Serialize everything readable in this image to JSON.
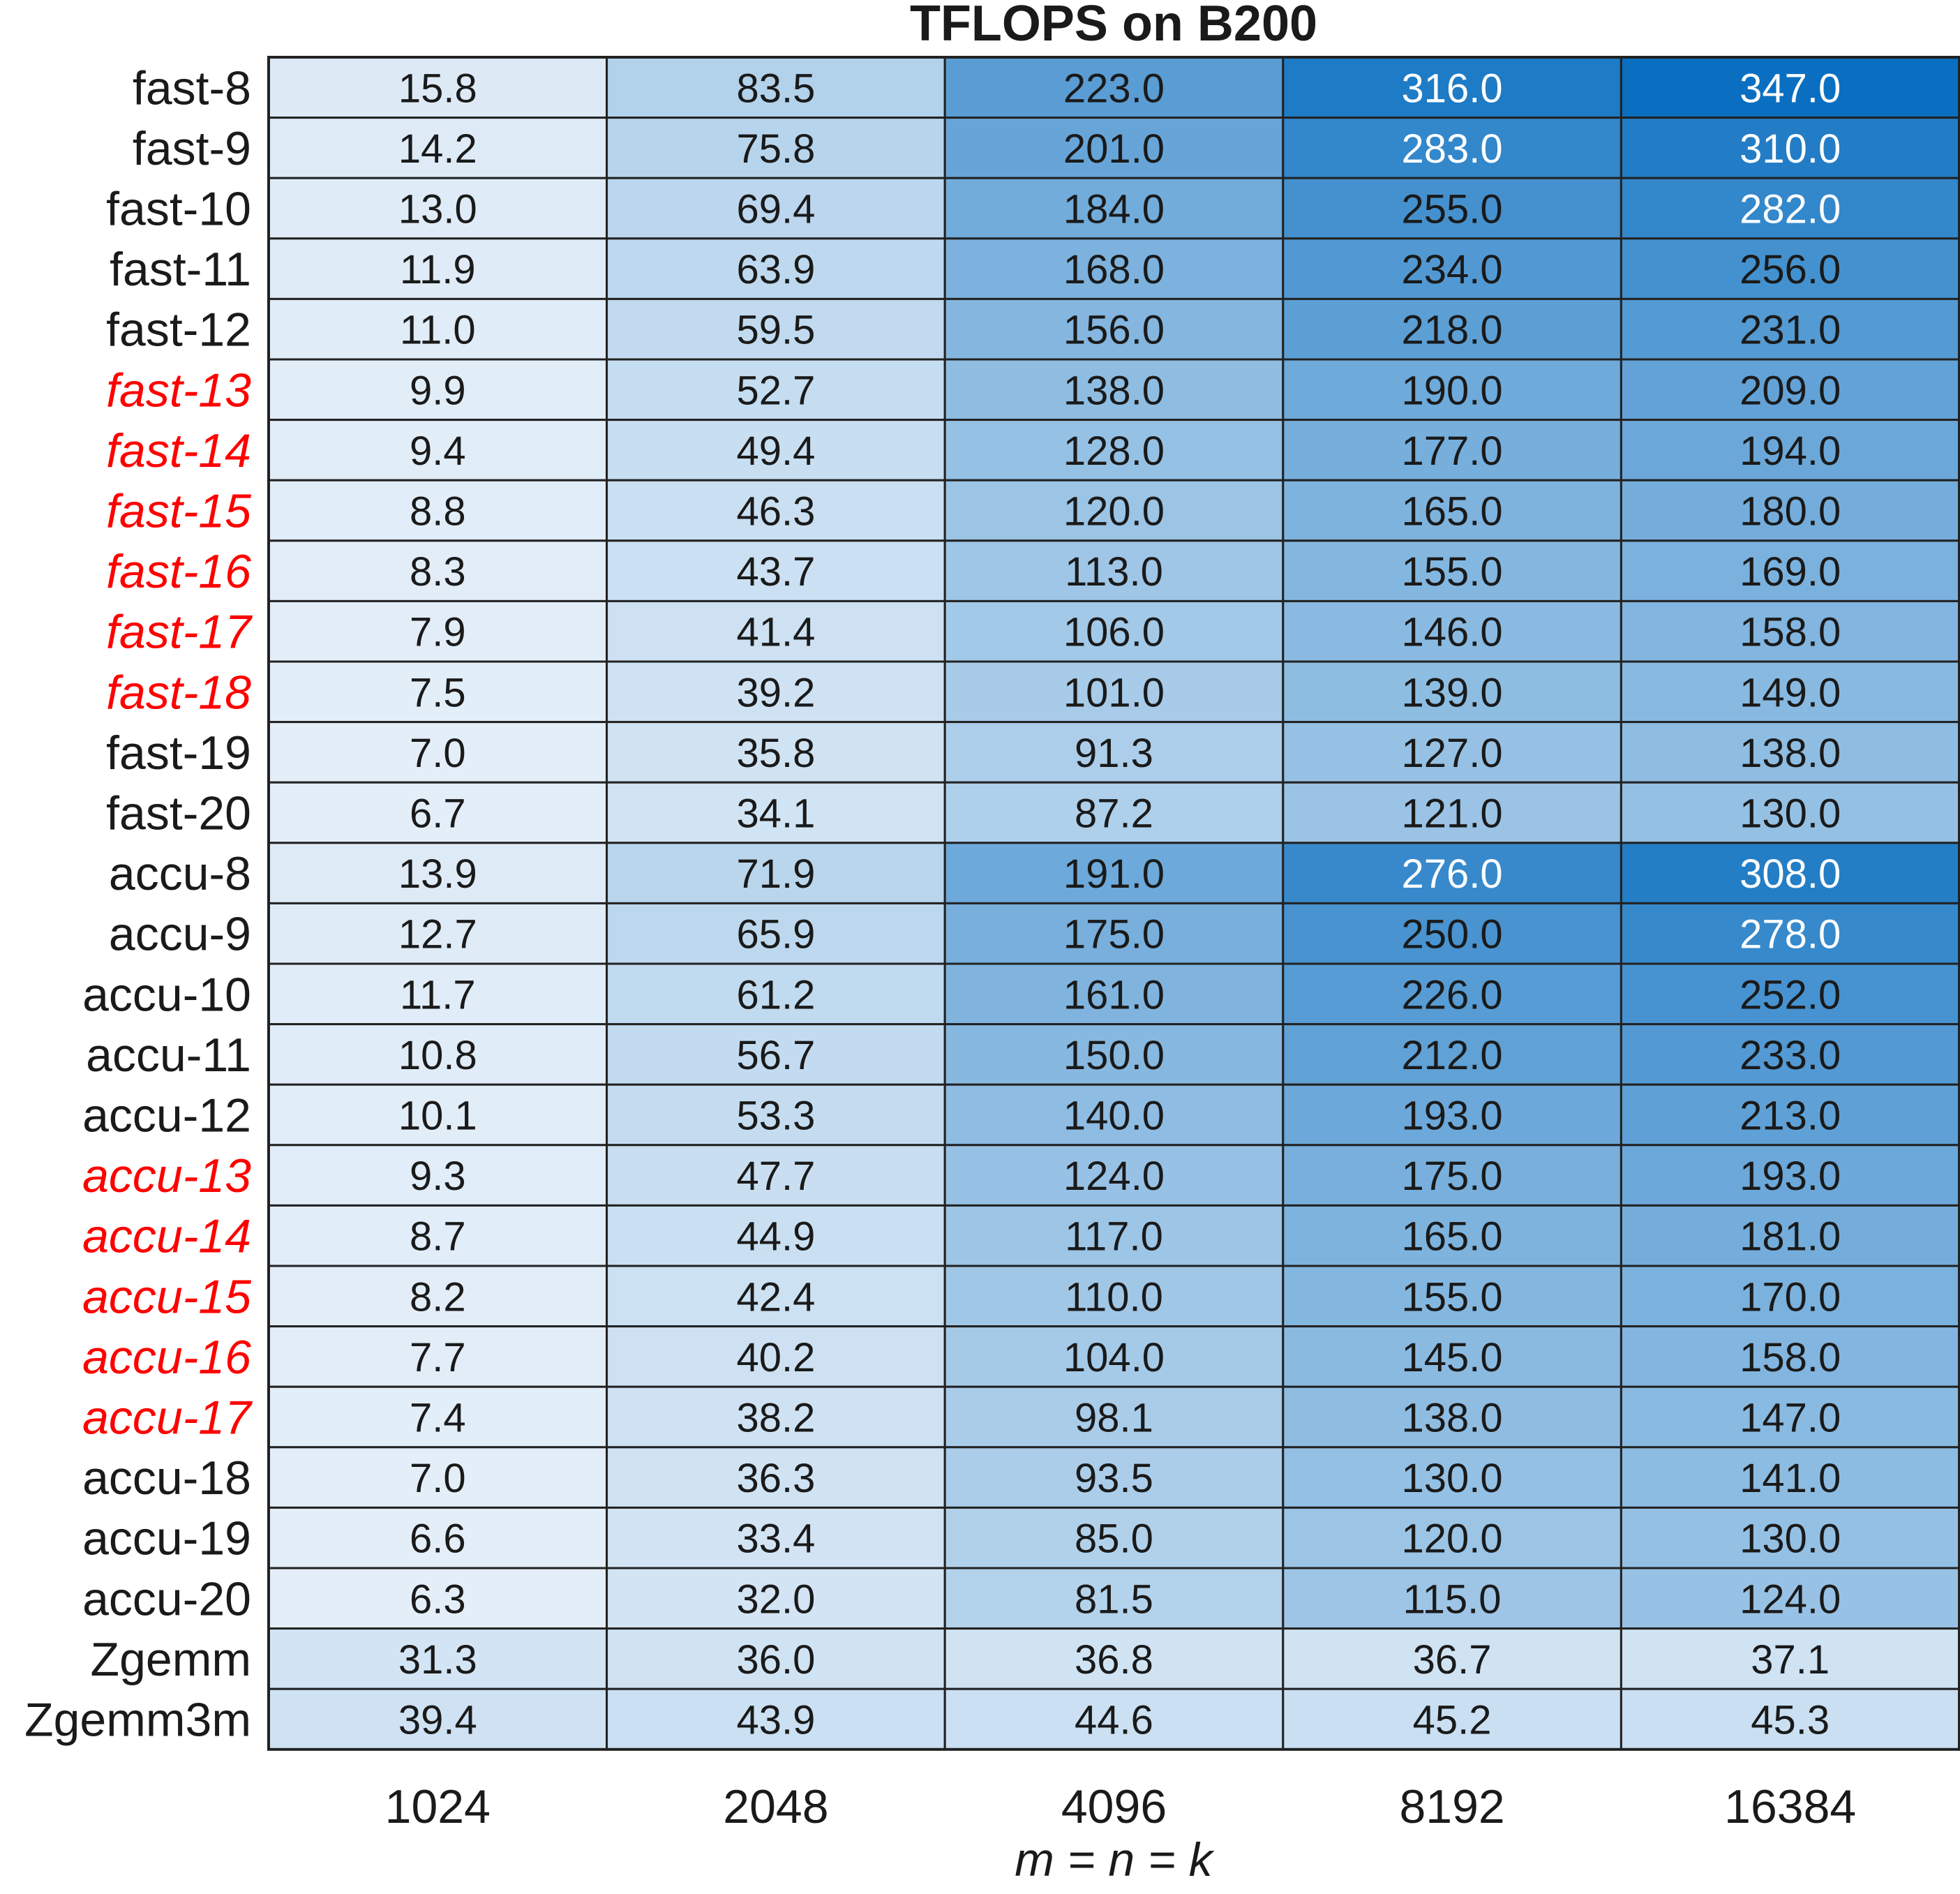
{
  "chart_data": {
    "type": "heatmap",
    "title": "TFLOPS on B200",
    "xlabel": "m = n = k",
    "ylabel": "",
    "colormap": "blues",
    "colors": {
      "low": "#e3eef8",
      "high": "#0a6fc0",
      "grid": "#222222",
      "highlight_label": "#ff0000",
      "label": "#1a1a1a",
      "value_dark": "#1a1a1a",
      "value_light": "#ffffff"
    },
    "x": [
      "1024",
      "2048",
      "4096",
      "8192",
      "16384"
    ],
    "y": [
      "fast-8",
      "fast-9",
      "fast-10",
      "fast-11",
      "fast-12",
      "fast-13",
      "fast-14",
      "fast-15",
      "fast-16",
      "fast-17",
      "fast-18",
      "fast-19",
      "fast-20",
      "accu-8",
      "accu-9",
      "accu-10",
      "accu-11",
      "accu-12",
      "accu-13",
      "accu-14",
      "accu-15",
      "accu-16",
      "accu-17",
      "accu-18",
      "accu-19",
      "accu-20",
      "Zgemm",
      "Zgemm3m"
    ],
    "highlighted_rows": [
      "fast-13",
      "fast-14",
      "fast-15",
      "fast-16",
      "fast-17",
      "fast-18",
      "accu-13",
      "accu-14",
      "accu-15",
      "accu-16",
      "accu-17"
    ],
    "values": [
      [
        15.8,
        83.5,
        223.0,
        316.0,
        347.0
      ],
      [
        14.2,
        75.8,
        201.0,
        283.0,
        310.0
      ],
      [
        13.0,
        69.4,
        184.0,
        255.0,
        282.0
      ],
      [
        11.9,
        63.9,
        168.0,
        234.0,
        256.0
      ],
      [
        11.0,
        59.5,
        156.0,
        218.0,
        231.0
      ],
      [
        9.9,
        52.7,
        138.0,
        190.0,
        209.0
      ],
      [
        9.4,
        49.4,
        128.0,
        177.0,
        194.0
      ],
      [
        8.8,
        46.3,
        120.0,
        165.0,
        180.0
      ],
      [
        8.3,
        43.7,
        113.0,
        155.0,
        169.0
      ],
      [
        7.9,
        41.4,
        106.0,
        146.0,
        158.0
      ],
      [
        7.5,
        39.2,
        101.0,
        139.0,
        149.0
      ],
      [
        7.0,
        35.8,
        91.3,
        127.0,
        138.0
      ],
      [
        6.7,
        34.1,
        87.2,
        121.0,
        130.0
      ],
      [
        13.9,
        71.9,
        191.0,
        276.0,
        308.0
      ],
      [
        12.7,
        65.9,
        175.0,
        250.0,
        278.0
      ],
      [
        11.7,
        61.2,
        161.0,
        226.0,
        252.0
      ],
      [
        10.8,
        56.7,
        150.0,
        212.0,
        233.0
      ],
      [
        10.1,
        53.3,
        140.0,
        193.0,
        213.0
      ],
      [
        9.3,
        47.7,
        124.0,
        175.0,
        193.0
      ],
      [
        8.7,
        44.9,
        117.0,
        165.0,
        181.0
      ],
      [
        8.2,
        42.4,
        110.0,
        155.0,
        170.0
      ],
      [
        7.7,
        40.2,
        104.0,
        145.0,
        158.0
      ],
      [
        7.4,
        38.2,
        98.1,
        138.0,
        147.0
      ],
      [
        7.0,
        36.3,
        93.5,
        130.0,
        141.0
      ],
      [
        6.6,
        33.4,
        85.0,
        120.0,
        130.0
      ],
      [
        6.3,
        32.0,
        81.5,
        115.0,
        124.0
      ],
      [
        31.3,
        36.0,
        36.8,
        36.7,
        37.1
      ],
      [
        39.4,
        43.9,
        44.6,
        45.2,
        45.3
      ]
    ],
    "value_range": [
      6.3,
      347.0
    ],
    "light_text_threshold": 270
  }
}
